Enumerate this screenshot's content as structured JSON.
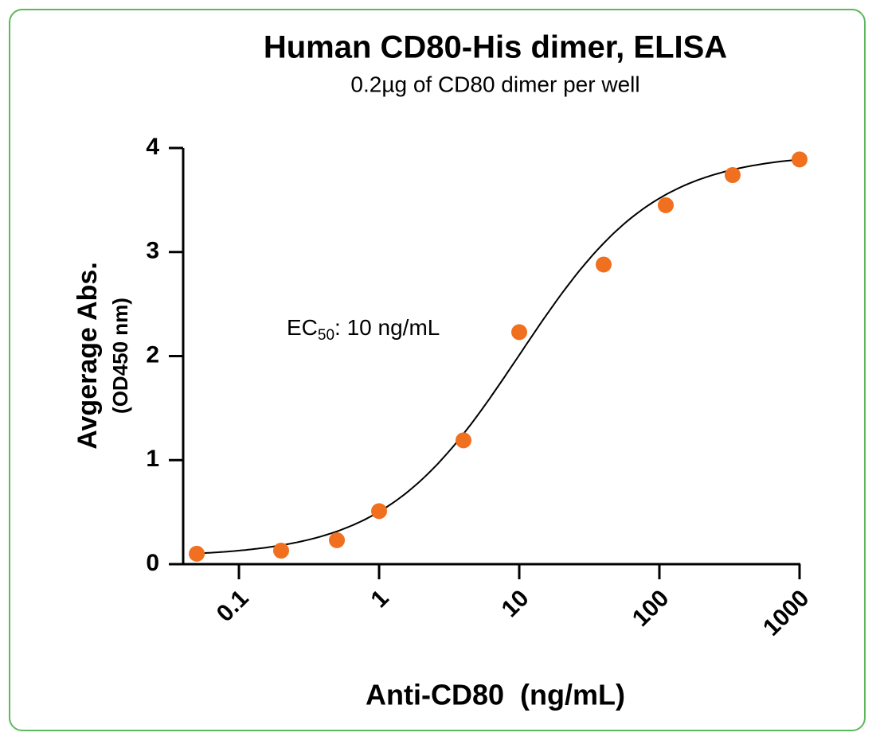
{
  "chart_data": {
    "type": "scatter",
    "title": "Human CD80-His dimer, ELISA",
    "subtitle": "0.2µg of CD80 dimer per well",
    "y_label": "Avgerage Abs.",
    "y_sublabel": "(OD450 nm)",
    "x_label": "Anti-CD80  (ng/mL)",
    "annotation": {
      "prefix": "EC",
      "subscript": "50",
      "text": ": 10 ng/mL"
    },
    "x_scale": "log",
    "xlim": [
      0.04,
      1000
    ],
    "xticks": [
      0.1,
      1,
      10,
      100,
      1000
    ],
    "ylim": [
      0,
      4
    ],
    "yticks": [
      0,
      1,
      2,
      3,
      4
    ],
    "series": [
      {
        "name": "Anti-CD80",
        "color": "#f07020",
        "x": [
          0.05,
          0.2,
          0.5,
          1,
          4,
          10,
          40,
          111,
          333,
          1000
        ],
        "values": [
          0.1,
          0.13,
          0.23,
          0.51,
          1.19,
          2.23,
          2.88,
          3.45,
          3.74,
          3.89
        ]
      }
    ],
    "fit": {
      "bottom": 0.07,
      "top": 3.95,
      "ec50": 10,
      "hillslope": 0.9,
      "color": "#000000"
    }
  }
}
